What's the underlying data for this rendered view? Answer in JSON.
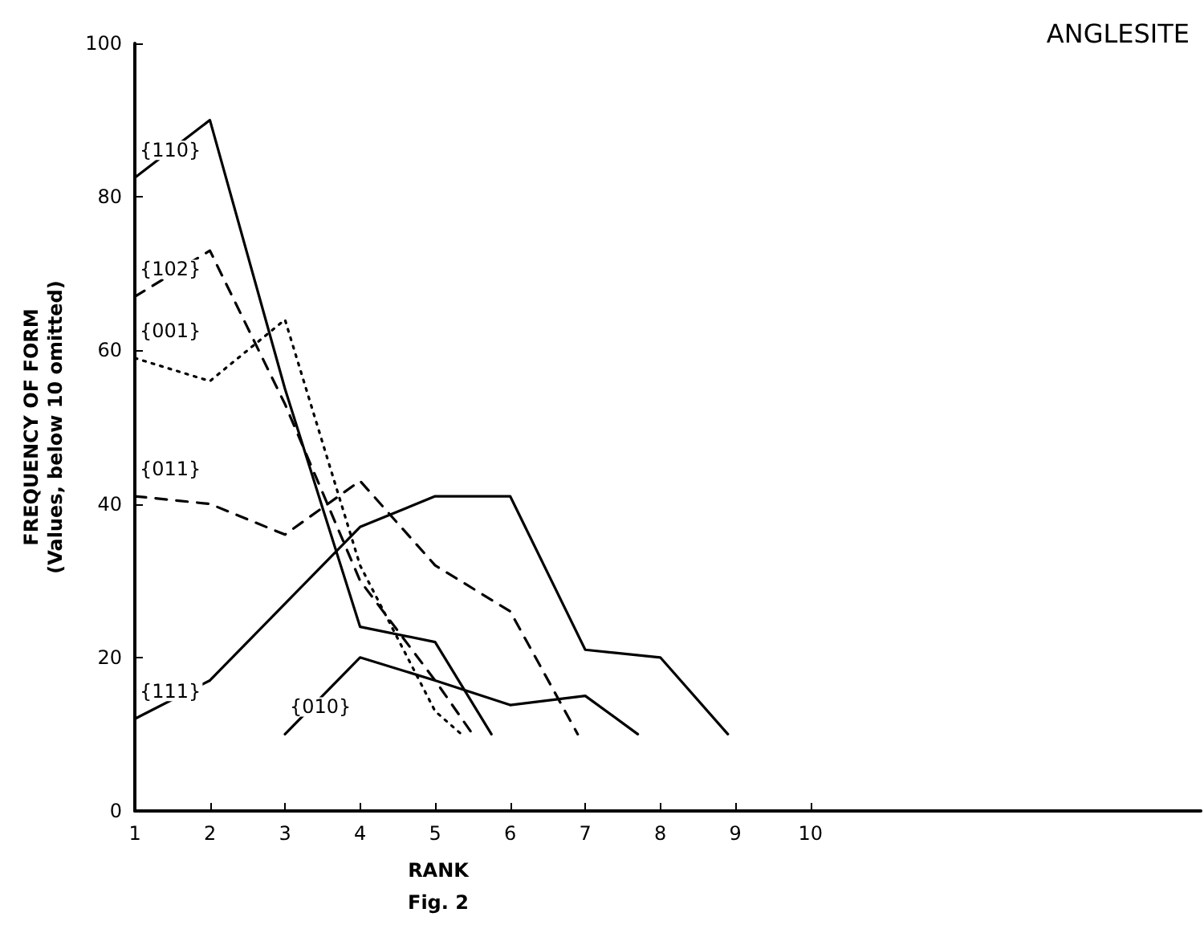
{
  "chart_data": {
    "type": "line",
    "title": "ANGLESITE",
    "xlabel": "RANK",
    "ylabel": "FREQUENCY OF FORM\n(Values, below 10 omitted)",
    "annotations": [
      "Fig. 2"
    ],
    "xlim": [
      1,
      15.2
    ],
    "xticks": [
      1,
      2,
      3,
      4,
      5,
      6,
      7,
      8,
      9,
      10
    ],
    "ylim": [
      0,
      100
    ],
    "yticks": [
      0,
      20,
      40,
      60,
      80,
      100
    ],
    "grid": false,
    "legend": false,
    "marker": "none",
    "series": [
      {
        "name": "{110}",
        "color": "#000000",
        "line_style": "solid",
        "x": [
          1,
          2,
          3,
          4,
          5,
          5.75
        ],
        "values": [
          82.5,
          90,
          55,
          24,
          22,
          10
        ]
      },
      {
        "name": "{102}",
        "color": "#000000",
        "line_style": "dashed",
        "x": [
          1,
          2,
          3,
          4,
          5,
          5.5
        ],
        "values": [
          67,
          73,
          53,
          30,
          17,
          10
        ]
      },
      {
        "name": "{001}",
        "color": "#000000",
        "line_style": "dotted",
        "x": [
          1,
          2,
          3,
          4,
          5,
          5.35
        ],
        "values": [
          59,
          56,
          64,
          32,
          13,
          10
        ]
      },
      {
        "name": "{011}",
        "color": "#000000",
        "line_style": "dashed",
        "x": [
          1,
          2,
          3,
          4,
          5,
          6,
          6.9
        ],
        "values": [
          41,
          40,
          36,
          43,
          32,
          26,
          10
        ]
      },
      {
        "name": "{111}",
        "color": "#000000",
        "line_style": "solid",
        "x": [
          1,
          2,
          3,
          4,
          5,
          6,
          7,
          8,
          8.9
        ],
        "values": [
          12,
          17,
          27,
          37,
          41,
          41,
          21,
          20,
          10
        ]
      },
      {
        "name": "{010}",
        "color": "#000000",
        "line_style": "solid",
        "x": [
          3,
          4,
          5,
          6,
          7,
          7.7
        ],
        "values": [
          10,
          20,
          17,
          13.8,
          15,
          10
        ]
      }
    ]
  }
}
